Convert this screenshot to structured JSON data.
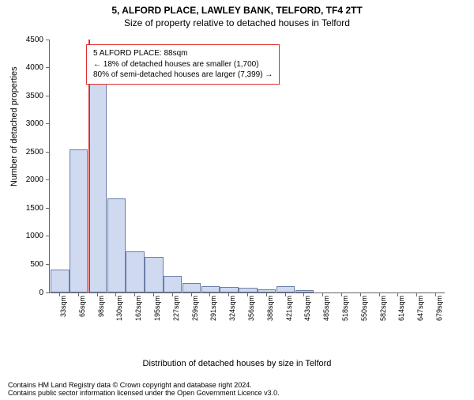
{
  "title": "5, ALFORD PLACE, LAWLEY BANK, TELFORD, TF4 2TT",
  "subtitle": "Size of property relative to detached houses in Telford",
  "y_axis_label": "Number of detached properties",
  "x_axis_label": "Distribution of detached houses by size in Telford",
  "footer_line1": "Contains HM Land Registry data © Crown copyright and database right 2024.",
  "footer_line2": "Contains public sector information licensed under the Open Government Licence v3.0.",
  "chart": {
    "type": "bar",
    "ylim": [
      0,
      4500
    ],
    "ytick_step": 500,
    "bar_fill": "#cfd9f0",
    "bar_stroke": "#6a7fa8",
    "plot_bg": "#ffffff",
    "grid_color": "#c8c8c8",
    "axis_color": "#666666",
    "marker_color": "#e03030",
    "marker_index": 2,
    "x_labels": [
      "33sqm",
      "65sqm",
      "98sqm",
      "130sqm",
      "162sqm",
      "195sqm",
      "227sqm",
      "259sqm",
      "291sqm",
      "324sqm",
      "356sqm",
      "388sqm",
      "421sqm",
      "453sqm",
      "485sqm",
      "518sqm",
      "550sqm",
      "582sqm",
      "614sqm",
      "647sqm",
      "679sqm"
    ],
    "values": [
      380,
      2520,
      3950,
      1650,
      700,
      600,
      270,
      140,
      90,
      70,
      50,
      30,
      80,
      15,
      0,
      0,
      0,
      0,
      0,
      0,
      0
    ]
  },
  "info_box": {
    "border_color": "#e03030",
    "line1": "5 ALFORD PLACE: 88sqm",
    "line2": "← 18% of detached houses are smaller (1,700)",
    "line3": "80% of semi-detached houses are larger (7,399) →"
  }
}
